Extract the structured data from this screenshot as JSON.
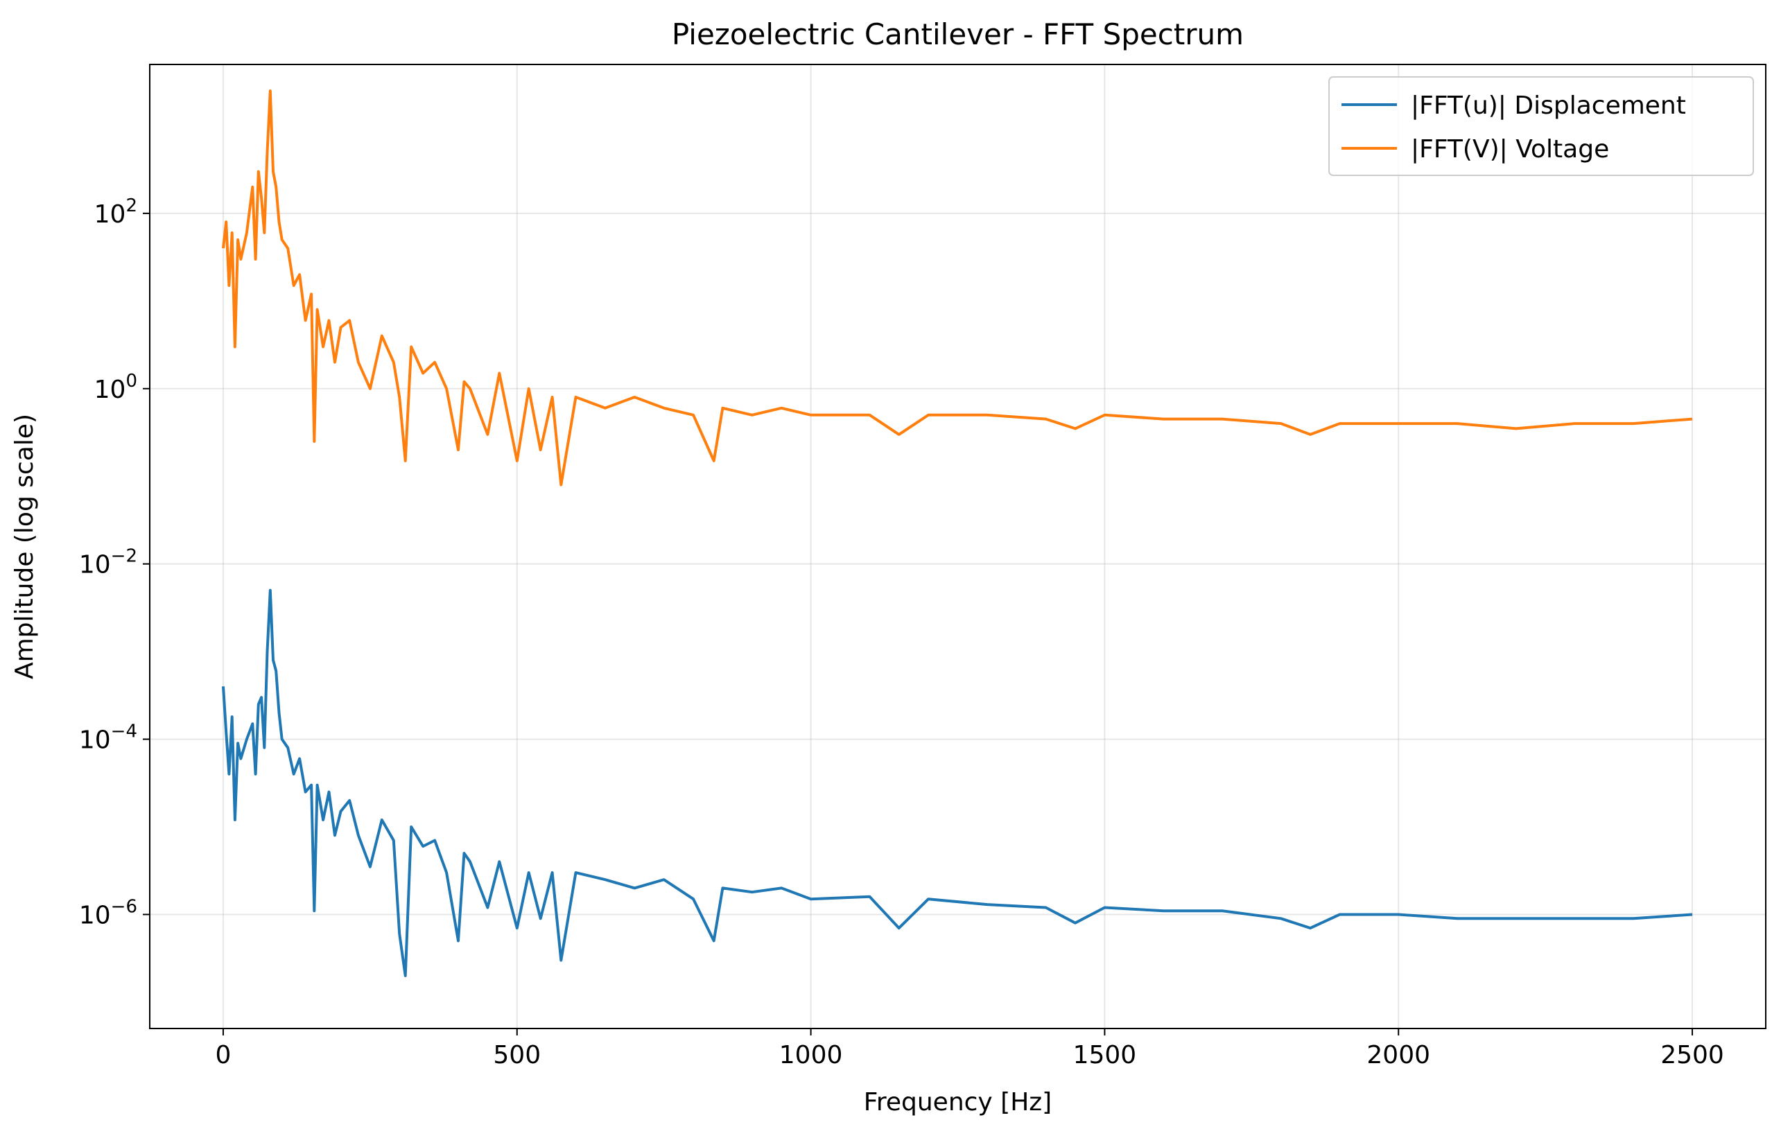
{
  "chart_data": {
    "type": "line",
    "title": "Piezoelectric Cantilever - FFT Spectrum",
    "xlabel": "Frequency [Hz]",
    "ylabel": "Amplitude (log scale)",
    "xlim": [
      -125,
      2625
    ],
    "ylim": [
      5e-08,
      5000.0
    ],
    "yscale": "log",
    "grid": true,
    "legend_position": "top-right",
    "xticks": [
      {
        "value": 0,
        "label": "0"
      },
      {
        "value": 500,
        "label": "500"
      },
      {
        "value": 1000,
        "label": "1000"
      },
      {
        "value": 1500,
        "label": "1500"
      },
      {
        "value": 2000,
        "label": "2000"
      },
      {
        "value": 2500,
        "label": "2500"
      }
    ],
    "yticks": [
      {
        "value": 100,
        "base": "10",
        "exp": "2"
      },
      {
        "value": 1,
        "base": "10",
        "exp": "0"
      },
      {
        "value": 0.01,
        "base": "10",
        "exp": "−2"
      },
      {
        "value": 0.0001,
        "base": "10",
        "exp": "−4"
      },
      {
        "value": 1e-06,
        "base": "10",
        "exp": "−6"
      }
    ],
    "series": [
      {
        "name": "|FFT(u)| Displacement",
        "color": "#1f77b4",
        "x": [
          0,
          5,
          10,
          15,
          20,
          25,
          30,
          40,
          50,
          55,
          60,
          65,
          70,
          75,
          80,
          85,
          90,
          95,
          100,
          110,
          120,
          130,
          140,
          150,
          155,
          160,
          170,
          180,
          190,
          200,
          215,
          230,
          250,
          270,
          290,
          300,
          310,
          320,
          340,
          360,
          380,
          400,
          410,
          420,
          450,
          470,
          500,
          520,
          540,
          560,
          575,
          600,
          650,
          700,
          750,
          800,
          835,
          850,
          900,
          950,
          1000,
          1100,
          1150,
          1200,
          1300,
          1400,
          1450,
          1500,
          1600,
          1700,
          1800,
          1850,
          1900,
          2000,
          2100,
          2200,
          2300,
          2400,
          2500
        ],
        "values": [
          0.0004,
          0.00012,
          4e-05,
          0.00018,
          1.2e-05,
          9e-05,
          6e-05,
          0.0001,
          0.00015,
          4e-05,
          0.00025,
          0.0003,
          8e-05,
          0.001,
          0.005,
          0.0008,
          0.0006,
          0.0002,
          0.0001,
          8e-05,
          4e-05,
          6e-05,
          2.5e-05,
          3e-05,
          1.1e-06,
          3e-05,
          1.2e-05,
          2.5e-05,
          8e-06,
          1.5e-05,
          2e-05,
          8e-06,
          3.5e-06,
          1.2e-05,
          7e-06,
          6e-07,
          2e-07,
          1e-05,
          6e-06,
          7e-06,
          3e-06,
          5e-07,
          5e-06,
          4e-06,
          1.2e-06,
          4e-06,
          7e-07,
          3e-06,
          9e-07,
          3e-06,
          3e-07,
          3e-06,
          2.5e-06,
          2e-06,
          2.5e-06,
          1.5e-06,
          5e-07,
          2e-06,
          1.8e-06,
          2e-06,
          1.5e-06,
          1.6e-06,
          7e-07,
          1.5e-06,
          1.3e-06,
          1.2e-06,
          8e-07,
          1.2e-06,
          1.1e-06,
          1.1e-06,
          9e-07,
          7e-07,
          1e-06,
          1e-06,
          9e-07,
          9e-07,
          9e-07,
          9e-07,
          1e-06
        ]
      },
      {
        "name": "|FFT(V)| Voltage",
        "color": "#ff7f0e",
        "x": [
          0,
          5,
          10,
          15,
          20,
          25,
          30,
          40,
          50,
          55,
          60,
          65,
          70,
          75,
          80,
          85,
          90,
          95,
          100,
          110,
          120,
          130,
          140,
          150,
          155,
          160,
          170,
          180,
          190,
          200,
          215,
          230,
          250,
          270,
          290,
          300,
          310,
          320,
          340,
          360,
          380,
          400,
          410,
          420,
          450,
          470,
          500,
          520,
          540,
          560,
          575,
          600,
          650,
          700,
          750,
          800,
          835,
          850,
          900,
          950,
          1000,
          1100,
          1150,
          1200,
          1300,
          1400,
          1450,
          1500,
          1600,
          1700,
          1800,
          1850,
          1900,
          2000,
          2100,
          2200,
          2300,
          2400,
          2500
        ],
        "values": [
          40,
          80,
          15,
          60,
          3,
          50,
          30,
          60,
          200,
          30,
          300,
          150,
          60,
          500,
          2500,
          300,
          200,
          80,
          50,
          40,
          15,
          20,
          6,
          12,
          0.25,
          8,
          3,
          6,
          2,
          5,
          6,
          2,
          1,
          4,
          2,
          0.8,
          0.15,
          3,
          1.5,
          2,
          1,
          0.2,
          1.2,
          1,
          0.3,
          1.5,
          0.15,
          1,
          0.2,
          0.8,
          0.08,
          0.8,
          0.6,
          0.8,
          0.6,
          0.5,
          0.15,
          0.6,
          0.5,
          0.6,
          0.5,
          0.5,
          0.3,
          0.5,
          0.5,
          0.45,
          0.35,
          0.5,
          0.45,
          0.45,
          0.4,
          0.3,
          0.4,
          0.4,
          0.4,
          0.35,
          0.4,
          0.4,
          0.45
        ]
      }
    ]
  }
}
